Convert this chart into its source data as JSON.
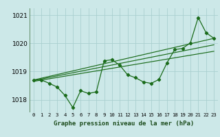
{
  "title": "Graphe pression niveau de la mer (hPa)",
  "bg_color": "#cce8e8",
  "grid_color": "#aad0d0",
  "line_color": "#1a6b1a",
  "xlim": [
    -0.5,
    23.5
  ],
  "ylim": [
    1017.55,
    1021.25
  ],
  "yticks": [
    1018,
    1019,
    1020,
    1021
  ],
  "xtick_labels": [
    "0",
    "1",
    "2",
    "3",
    "4",
    "5",
    "6",
    "7",
    "8",
    "9",
    "10",
    "11",
    "12",
    "13",
    "14",
    "15",
    "16",
    "17",
    "18",
    "19",
    "20",
    "21",
    "22",
    "23"
  ],
  "main_line": [
    [
      0,
      1018.7
    ],
    [
      1,
      1018.7
    ],
    [
      2,
      1018.58
    ],
    [
      3,
      1018.45
    ],
    [
      4,
      1018.15
    ],
    [
      5,
      1017.72
    ],
    [
      6,
      1018.32
    ],
    [
      7,
      1018.22
    ],
    [
      8,
      1018.28
    ],
    [
      9,
      1019.38
    ],
    [
      10,
      1019.42
    ],
    [
      11,
      1019.22
    ],
    [
      12,
      1018.88
    ],
    [
      13,
      1018.78
    ],
    [
      14,
      1018.63
    ],
    [
      15,
      1018.58
    ],
    [
      16,
      1018.72
    ],
    [
      17,
      1019.3
    ],
    [
      18,
      1019.78
    ],
    [
      19,
      1019.82
    ],
    [
      20,
      1020.02
    ],
    [
      21,
      1020.92
    ],
    [
      22,
      1020.38
    ],
    [
      23,
      1020.18
    ]
  ],
  "trend_line1": [
    [
      0,
      1018.7
    ],
    [
      23,
      1020.18
    ]
  ],
  "trend_line2": [
    [
      0,
      1018.68
    ],
    [
      23,
      1019.95
    ]
  ],
  "trend_line3": [
    [
      0,
      1018.65
    ],
    [
      23,
      1019.72
    ]
  ]
}
